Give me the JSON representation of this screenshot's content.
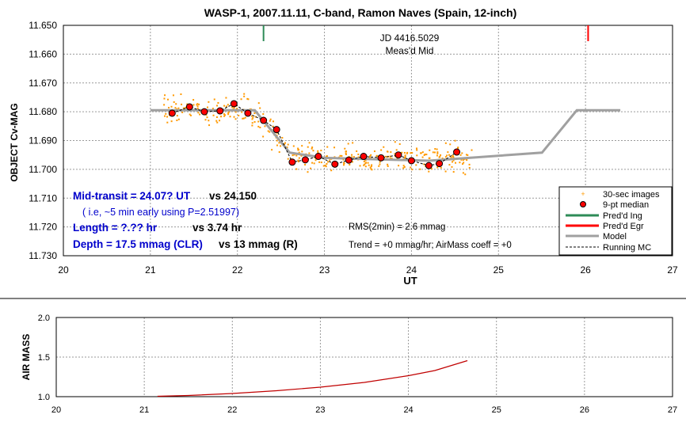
{
  "chart_data": [
    {
      "type": "scatter",
      "title": "WASP-1, 2007.11.11, C-band, Ramon Naves (Spain, 12-inch)",
      "xlabel": "UT",
      "ylabel": "OBJECT Cv-MAG",
      "xlim": [
        20,
        27
      ],
      "ylim": [
        11.65,
        11.73
      ],
      "y_inverted": true,
      "grid": "dashed",
      "x_ticks": [
        "20",
        "21",
        "22",
        "23",
        "24",
        "25",
        "26",
        "27"
      ],
      "y_ticks": [
        "11.650",
        "11.660",
        "11.670",
        "11.680",
        "11.690",
        "11.700",
        "11.710",
        "11.720",
        "11.730"
      ],
      "legend_position": "bottom-right",
      "legend": [
        "30-sec images",
        "9-pt median",
        "Pred'd Ing",
        "Pred'd Egr",
        "Model",
        "Running MC"
      ],
      "series": [
        {
          "name": "9-pt median",
          "color": "#ff0000",
          "x": [
            21.25,
            21.45,
            21.62,
            21.8,
            21.96,
            22.12,
            22.3,
            22.45,
            22.63,
            22.78,
            22.93,
            23.12,
            23.28,
            23.45,
            23.65,
            23.85,
            24.0,
            24.2,
            24.32,
            24.52
          ],
          "y": [
            11.6805,
            11.6783,
            11.68,
            11.6797,
            11.6772,
            11.6805,
            11.683,
            11.6862,
            11.6975,
            11.6967,
            11.6955,
            11.6982,
            11.6968,
            11.6955,
            11.696,
            11.695,
            11.697,
            11.6987,
            11.698,
            11.694
          ]
        },
        {
          "name": "Model",
          "color": "#a0a0a0",
          "x": [
            21.0,
            22.2,
            22.6,
            23.0,
            24.2,
            25.5,
            25.9,
            26.4
          ],
          "y": [
            11.6795,
            11.6795,
            11.6942,
            11.696,
            11.697,
            11.6942,
            11.6795,
            11.6795
          ]
        },
        {
          "name": "Pred'd Ing",
          "color": "#2e8b57",
          "x": [
            22.3
          ],
          "y": [
            11.65
          ]
        },
        {
          "name": "Pred'd Egr",
          "color": "#ff0000",
          "x": [
            26.03
          ],
          "y": [
            11.65
          ]
        },
        {
          "name": "30-sec images",
          "color": "#ff9900",
          "x_range": [
            21.15,
            24.7
          ]
        }
      ],
      "annotations": {
        "jd": "JD 4416.5029",
        "meas_mid": "Meas'd Mid",
        "mid_transit_a": "Mid-transit = 24.07? UT",
        "mid_transit_b": "vs 24.150",
        "early_note": "( i.e, ~5 min early using P=2.51997)",
        "length_a": "Length = ?.?? hr",
        "length_b": "vs 3.74 hr",
        "depth_a": "Depth = 17.5 mmag (CLR)",
        "depth_b": "vs 13 mmag (R)",
        "rms": "RMS(2min) = 2.6 mmag",
        "trend": "Trend = +0 mmag/hr; AirMass coeff = +0"
      }
    },
    {
      "type": "line",
      "title": "",
      "xlabel": "",
      "ylabel": "AIR MASS",
      "xlim": [
        20,
        27
      ],
      "ylim": [
        1.0,
        2.0
      ],
      "x_ticks": [
        "20",
        "21",
        "22",
        "23",
        "24",
        "25",
        "26",
        "27"
      ],
      "y_ticks": [
        "1.0",
        "1.5",
        "2.0"
      ],
      "grid": "dashed",
      "series": [
        {
          "color": "#c00000",
          "x": [
            21.15,
            21.5,
            22.0,
            22.5,
            23.0,
            23.5,
            24.0,
            24.3,
            24.67
          ],
          "y": [
            1.005,
            1.015,
            1.04,
            1.075,
            1.12,
            1.18,
            1.265,
            1.33,
            1.455
          ]
        }
      ]
    }
  ]
}
